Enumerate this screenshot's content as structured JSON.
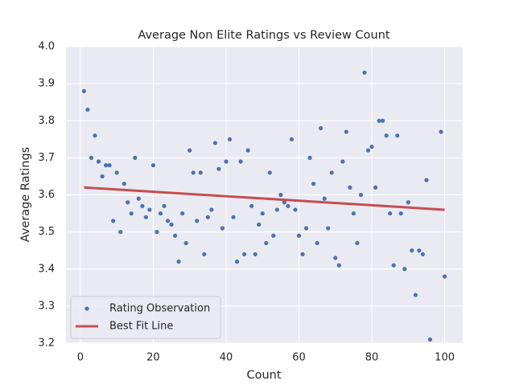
{
  "chart_data": {
    "type": "scatter",
    "title": "Average Non Elite Ratings vs Review Count",
    "xlabel": "Count",
    "ylabel": "Average Ratings",
    "xlim": [
      -3.95,
      104.95
    ],
    "ylim": [
      3.2,
      4.0
    ],
    "xticks": [
      0,
      20,
      40,
      60,
      80,
      100
    ],
    "yticks": [
      3.2,
      3.3,
      3.4,
      3.5,
      3.6,
      3.7,
      3.8,
      3.9,
      {
        "value": 4,
        "label": "4.0"
      }
    ],
    "grid": true,
    "legend": "lower left",
    "series": [
      {
        "name": "Rating Observation",
        "type": "scatter",
        "color": "#4c72b0",
        "x": [
          1,
          2,
          3,
          4,
          5,
          6,
          7,
          8,
          9,
          10,
          11,
          12,
          13,
          14,
          15,
          16,
          17,
          18,
          19,
          20,
          21,
          22,
          23,
          24,
          25,
          26,
          27,
          28,
          29,
          30,
          31,
          32,
          33,
          34,
          35,
          36,
          37,
          38,
          39,
          40,
          41,
          42,
          43,
          44,
          45,
          46,
          47,
          48,
          49,
          50,
          51,
          52,
          53,
          54,
          55,
          56,
          57,
          58,
          59,
          60,
          61,
          62,
          63,
          64,
          65,
          66,
          67,
          68,
          69,
          70,
          71,
          72,
          73,
          74,
          75,
          76,
          77,
          78,
          79,
          80,
          81,
          82,
          83,
          84,
          85,
          86,
          87,
          88,
          89,
          90,
          91,
          92,
          93,
          94,
          95,
          96,
          99,
          100
        ],
        "values": [
          3.88,
          3.83,
          3.7,
          3.76,
          3.69,
          3.65,
          3.68,
          3.68,
          3.53,
          3.66,
          3.5,
          3.63,
          3.58,
          3.55,
          3.7,
          3.59,
          3.57,
          3.54,
          3.56,
          3.68,
          3.5,
          3.55,
          3.57,
          3.53,
          3.52,
          3.49,
          3.42,
          3.55,
          3.47,
          3.72,
          3.66,
          3.53,
          3.66,
          3.44,
          3.54,
          3.56,
          3.74,
          3.67,
          3.51,
          3.69,
          3.75,
          3.54,
          3.42,
          3.69,
          3.44,
          3.72,
          3.57,
          3.44,
          3.52,
          3.55,
          3.47,
          3.66,
          3.49,
          3.56,
          3.6,
          3.58,
          3.57,
          3.75,
          3.56,
          3.49,
          3.44,
          3.51,
          3.7,
          3.63,
          3.47,
          3.78,
          3.59,
          3.51,
          3.66,
          3.43,
          3.41,
          3.69,
          3.77,
          3.62,
          3.55,
          3.47,
          3.6,
          3.93,
          3.72,
          3.73,
          3.62,
          3.8,
          3.8,
          3.76,
          3.55,
          3.41,
          3.76,
          3.55,
          3.4,
          3.58,
          3.45,
          3.33,
          3.45,
          3.44,
          3.64,
          3.21,
          3.77,
          3.38
        ]
      },
      {
        "name": "Best Fit Line",
        "type": "line",
        "color": "#c44e52",
        "x": [
          1,
          100
        ],
        "values": [
          3.62,
          3.56
        ]
      }
    ]
  }
}
